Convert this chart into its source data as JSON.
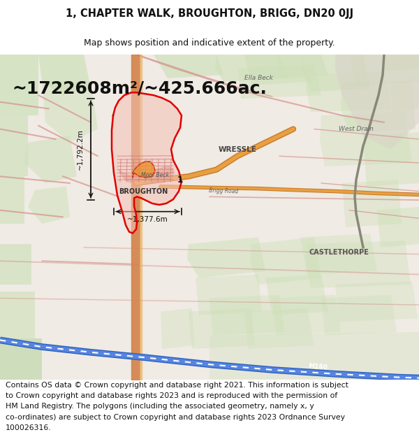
{
  "title": "1, CHAPTER WALK, BROUGHTON, BRIGG, DN20 0JJ",
  "subtitle": "Map shows position and indicative extent of the property.",
  "area_text": "~1722608m²/~425.666ac.",
  "width_label": "~1,377.6m",
  "height_label": "~1,792.2m",
  "footer_lines": [
    "Contains OS data © Crown copyright and database right 2021. This information is subject",
    "to Crown copyright and database rights 2023 and is reproduced with the permission of",
    "HM Land Registry. The polygons (including the associated geometry, namely x, y",
    "co-ordinates) are subject to Crown copyright and database rights 2023 Ordnance Survey",
    "100026316."
  ],
  "title_fontsize": 10.5,
  "subtitle_fontsize": 9,
  "area_fontsize": 18,
  "footer_fontsize": 7.8,
  "label_fontsize": 7,
  "fig_width": 6.0,
  "fig_height": 6.25,
  "dpi": 100,
  "bg_tan": "#f0ebe4",
  "bg_white": "#ffffff",
  "green_light": "#cde0b8",
  "green_mid": "#b8d4a0",
  "pink_fill": "#f2c0b8",
  "red_line": "#e00000",
  "orange_road": "#e8a030",
  "blue_motor": "#4a80d8",
  "grey_road": "#c8a8a0",
  "annotation_color": "#111111",
  "label_gray": "#555555",
  "label_dark": "#333333"
}
